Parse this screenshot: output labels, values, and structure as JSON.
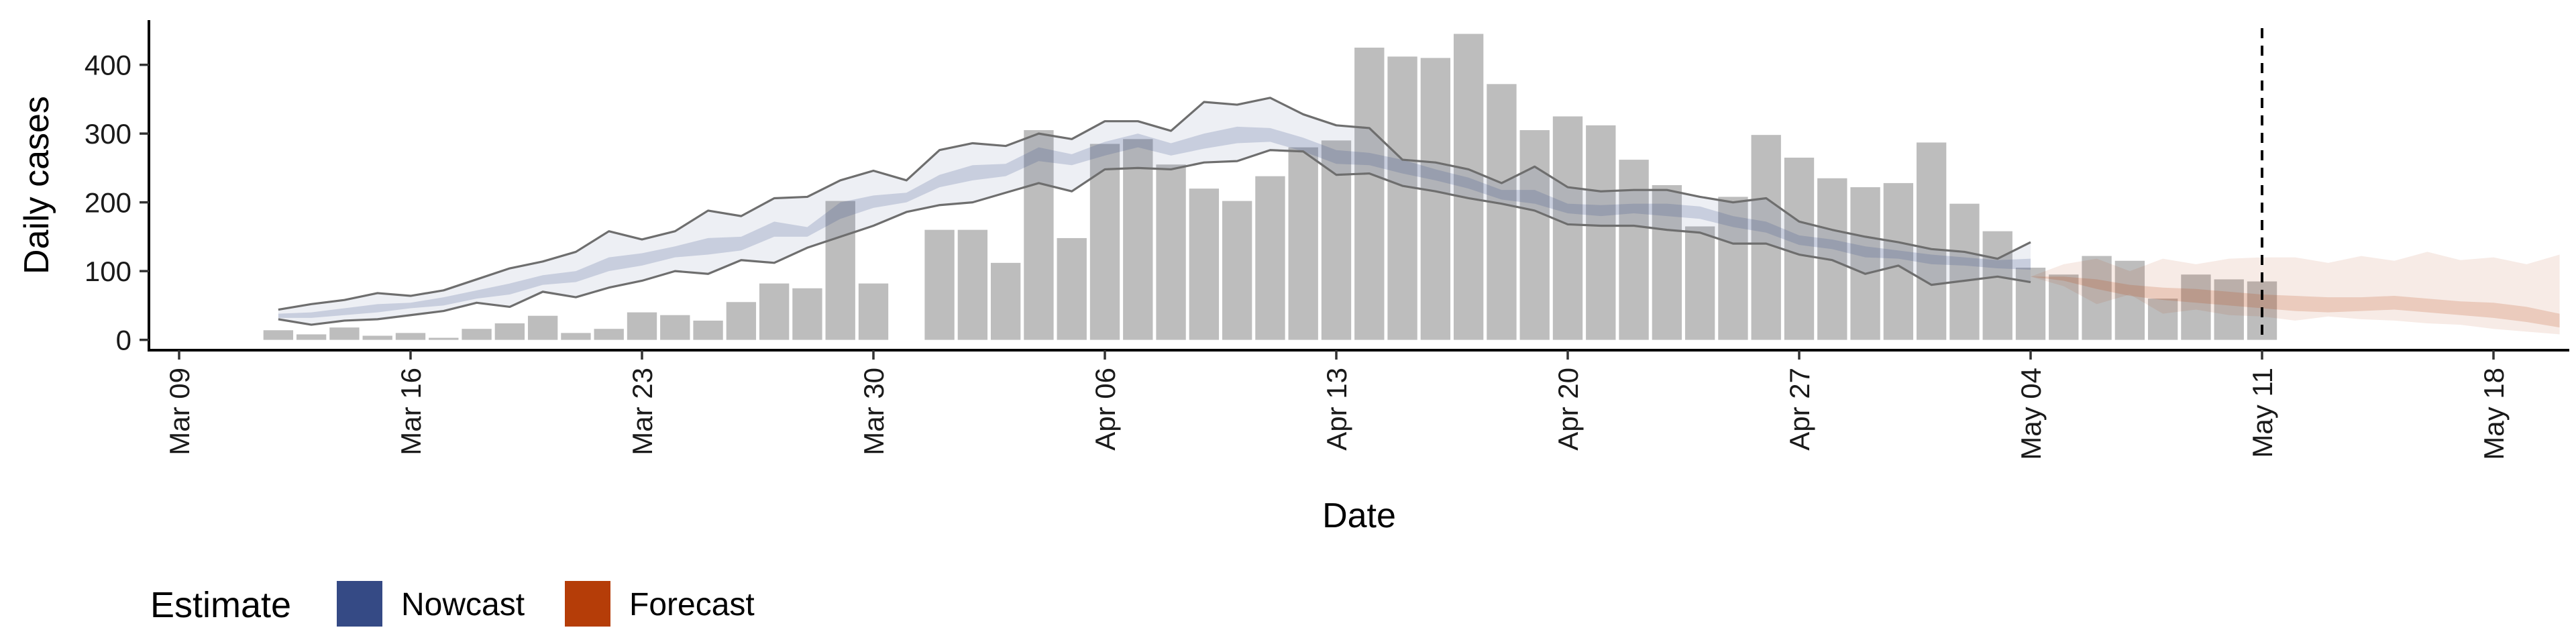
{
  "chart_data": {
    "type": "bar",
    "xlabel": "Date",
    "ylabel": "Daily cases",
    "x_ticks": [
      "Mar 09",
      "Mar 16",
      "Mar 23",
      "Mar 30",
      "Apr 06",
      "Apr 13",
      "Apr 20",
      "Apr 27",
      "May 04",
      "May 11",
      "May 18"
    ],
    "y_ticks": [
      0,
      100,
      200,
      300,
      400
    ],
    "xlim": [
      "2020-03-09",
      "2020-05-18"
    ],
    "ylim": [
      -15,
      465
    ],
    "grid": false,
    "vline_date": "2020-05-11",
    "bar_start_date": "2020-03-12",
    "bars": [
      14,
      8,
      18,
      6,
      10,
      3,
      16,
      24,
      35,
      10,
      16,
      40,
      36,
      28,
      55,
      82,
      75,
      202,
      82,
      null,
      160,
      160,
      112,
      305,
      148,
      285,
      292,
      255,
      220,
      202,
      238,
      280,
      290,
      425,
      412,
      410,
      445,
      372,
      305,
      325,
      312,
      262,
      225,
      165,
      208,
      298,
      265,
      235,
      222,
      228,
      287,
      198,
      158,
      105,
      95,
      122,
      115,
      60,
      95,
      88,
      85
    ],
    "nowcast": {
      "start_date": "2020-03-12",
      "upper90": [
        44,
        52,
        58,
        68,
        64,
        72,
        88,
        104,
        114,
        128,
        158,
        146,
        158,
        188,
        180,
        206,
        208,
        232,
        246,
        232,
        276,
        286,
        282,
        300,
        292,
        318,
        318,
        304,
        346,
        342,
        352,
        328,
        312,
        308,
        262,
        258,
        248,
        228,
        252,
        222,
        216,
        218,
        218,
        208,
        200,
        206,
        172,
        160,
        150,
        142,
        132,
        128,
        118,
        142
      ],
      "lower90": [
        30,
        22,
        28,
        30,
        36,
        42,
        54,
        48,
        70,
        62,
        76,
        86,
        100,
        96,
        116,
        112,
        134,
        150,
        166,
        186,
        196,
        200,
        214,
        228,
        216,
        248,
        250,
        248,
        258,
        260,
        276,
        274,
        240,
        242,
        224,
        216,
        206,
        198,
        188,
        168,
        166,
        166,
        160,
        156,
        140,
        140,
        124,
        116,
        96,
        108,
        80,
        86,
        92,
        84
      ],
      "upper50": [
        38,
        40,
        46,
        52,
        54,
        62,
        72,
        82,
        94,
        100,
        120,
        126,
        136,
        148,
        150,
        172,
        164,
        200,
        210,
        214,
        240,
        254,
        256,
        280,
        270,
        288,
        300,
        286,
        300,
        310,
        308,
        294,
        276,
        272,
        262,
        248,
        236,
        218,
        218,
        198,
        196,
        198,
        198,
        194,
        180,
        172,
        152,
        146,
        136,
        130,
        124,
        120,
        116,
        118
      ],
      "lower50": [
        32,
        32,
        36,
        40,
        46,
        50,
        60,
        66,
        80,
        84,
        100,
        108,
        120,
        124,
        130,
        150,
        150,
        176,
        192,
        200,
        222,
        232,
        238,
        260,
        254,
        268,
        280,
        268,
        278,
        286,
        288,
        274,
        256,
        254,
        242,
        232,
        220,
        204,
        198,
        184,
        180,
        184,
        180,
        176,
        164,
        156,
        138,
        132,
        120,
        118,
        110,
        108,
        104,
        102
      ]
    },
    "forecast": {
      "start_date": "2020-05-04",
      "upper90": [
        92,
        110,
        118,
        100,
        118,
        110,
        118,
        120,
        120,
        112,
        122,
        115,
        128,
        116,
        120,
        110,
        124
      ],
      "lower90": [
        92,
        78,
        52,
        66,
        38,
        44,
        36,
        34,
        28,
        34,
        30,
        28,
        24,
        22,
        16,
        12,
        8
      ],
      "upper50": [
        92,
        92,
        88,
        80,
        76,
        74,
        70,
        66,
        64,
        62,
        62,
        64,
        60,
        56,
        54,
        48,
        38
      ],
      "lower50": [
        92,
        86,
        74,
        64,
        58,
        54,
        50,
        46,
        42,
        40,
        42,
        44,
        40,
        36,
        32,
        26,
        18
      ]
    },
    "legend": {
      "title": "Estimate",
      "position": "bottom-left",
      "items": [
        {
          "label": "Nowcast",
          "color": "#354a85"
        },
        {
          "label": "Forecast",
          "color": "#b53d08"
        }
      ]
    },
    "colors": {
      "bars": "#bdbdbd",
      "nowcast_band": "#354a85",
      "forecast_band": "#b53d08",
      "bound_lines": "#6e6e6e",
      "vline": "#000000"
    }
  }
}
